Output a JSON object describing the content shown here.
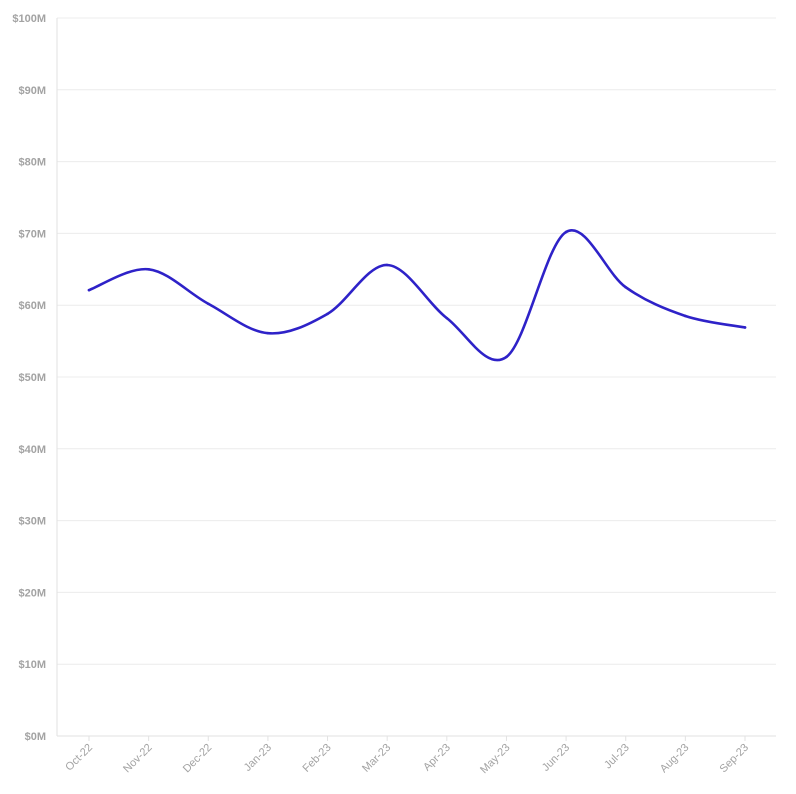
{
  "chart_data": {
    "type": "line",
    "categories": [
      "Oct-22",
      "Nov-22",
      "Dec-22",
      "Jan-23",
      "Feb-23",
      "Mar-23",
      "Apr-23",
      "May-23",
      "Jun-23",
      "Jul-23",
      "Aug-23",
      "Sep-23"
    ],
    "series": [
      {
        "values": [
          62.1,
          65.0,
          60.2,
          56.1,
          58.8,
          65.6,
          58.2,
          52.8,
          70.2,
          62.5,
          58.5,
          56.9
        ]
      }
    ],
    "y_tick_labels": [
      "$0M",
      "$10M",
      "$20M",
      "$30M",
      "$40M",
      "$50M",
      "$60M",
      "$70M",
      "$80M",
      "$90M",
      "$100M"
    ],
    "ylim": [
      0,
      100
    ],
    "y_unit": "millions USD",
    "grid": "horizontal",
    "line_color": "#2e22c8",
    "legend": "none"
  }
}
